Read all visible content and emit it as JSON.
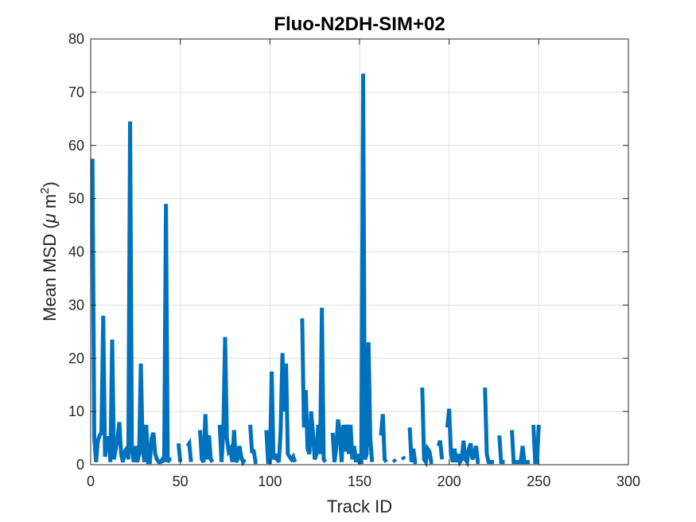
{
  "chart_data": {
    "type": "line",
    "title": "Fluo-N2DH-SIM+02",
    "xlabel": "Track ID",
    "ylabel_parts": [
      "Mean MSD (",
      "μ",
      " m",
      "2",
      ")"
    ],
    "xlim": [
      0,
      300
    ],
    "ylim": [
      0,
      80
    ],
    "xticks": [
      0,
      50,
      100,
      150,
      200,
      250,
      300
    ],
    "yticks": [
      0,
      10,
      20,
      30,
      40,
      50,
      60,
      70,
      80
    ],
    "grid": true,
    "line_color": "#0072BD",
    "axes_color": "#262626",
    "grid_color": "#dfdfdf",
    "series": [
      {
        "segments": [
          [
            [
              1,
              57.5
            ],
            [
              2,
              5
            ],
            [
              3,
              0.5
            ],
            [
              4,
              4.5
            ],
            [
              5,
              5.5
            ],
            [
              6,
              6
            ],
            [
              7,
              28
            ],
            [
              8,
              1.5
            ],
            [
              9,
              5
            ],
            [
              10,
              5
            ],
            [
              11,
              0.5
            ],
            [
              12,
              23.5
            ],
            [
              13,
              1
            ],
            [
              14,
              3
            ],
            [
              15,
              5
            ],
            [
              16,
              8
            ],
            [
              17,
              2
            ],
            [
              18,
              0.5
            ],
            [
              19,
              2.5
            ],
            [
              20,
              3
            ],
            [
              21,
              1
            ],
            [
              22,
              64.5
            ],
            [
              23,
              3
            ],
            [
              24,
              0.5
            ],
            [
              25,
              3.5
            ],
            [
              26,
              0.5
            ],
            [
              27,
              2
            ],
            [
              28,
              19
            ],
            [
              29,
              3
            ],
            [
              30,
              0.5
            ],
            [
              31,
              7.5
            ],
            [
              32,
              0.5
            ],
            [
              33,
              0.5
            ],
            [
              34,
              5
            ],
            [
              35,
              6
            ],
            [
              36,
              2
            ],
            [
              37,
              1
            ],
            [
              38,
              0.5
            ],
            [
              39,
              0.5
            ],
            [
              40,
              1
            ],
            [
              41,
              0.5
            ],
            [
              42,
              49
            ],
            [
              43,
              0.5
            ],
            [
              44,
              1
            ],
            [
              45,
              1
            ]
          ],
          [
            [
              49,
              4
            ],
            [
              50,
              0.5
            ]
          ],
          [
            [
              54,
              3.5
            ],
            [
              55,
              4
            ],
            [
              56,
              0.5
            ]
          ],
          [
            [
              61,
              6.5
            ],
            [
              62,
              1
            ],
            [
              63,
              0.5
            ],
            [
              64,
              9.5
            ],
            [
              65,
              1
            ],
            [
              66,
              5.5
            ],
            [
              67,
              1
            ],
            [
              68,
              0.5
            ]
          ],
          [
            [
              72,
              7.5
            ],
            [
              73,
              0.5
            ],
            [
              74,
              6
            ],
            [
              75,
              24
            ],
            [
              76,
              5
            ],
            [
              77,
              2.5
            ],
            [
              78,
              3
            ],
            [
              79,
              0.5
            ],
            [
              80,
              6.5
            ],
            [
              81,
              0.5
            ],
            [
              82,
              1
            ],
            [
              83,
              3.5
            ],
            [
              84,
              1.5
            ],
            [
              85,
              0.5
            ],
            [
              86,
              1
            ]
          ],
          [
            [
              89,
              7.5
            ],
            [
              90,
              2.5
            ],
            [
              91,
              2.5
            ],
            [
              92,
              0.5
            ],
            [
              93,
              0.5
            ]
          ],
          [
            [
              98,
              6.5
            ],
            [
              99,
              0.5
            ],
            [
              100,
              0.5
            ],
            [
              101,
              17.5
            ],
            [
              102,
              1
            ],
            [
              103,
              2
            ],
            [
              104,
              1
            ],
            [
              105,
              0.5
            ],
            [
              106,
              6.5
            ],
            [
              107,
              21
            ],
            [
              108,
              10
            ],
            [
              109,
              19
            ],
            [
              110,
              2
            ],
            [
              111,
              1.5
            ],
            [
              112,
              1
            ],
            [
              113,
              1.5
            ],
            [
              114,
              0.5
            ]
          ],
          [
            [
              118,
              27.5
            ],
            [
              119,
              7
            ],
            [
              120,
              14
            ],
            [
              121,
              3
            ],
            [
              122,
              2
            ],
            [
              123,
              10
            ],
            [
              124,
              6
            ],
            [
              125,
              1
            ],
            [
              126,
              2
            ],
            [
              127,
              7.5
            ],
            [
              128,
              2
            ],
            [
              129,
              29.5
            ],
            [
              130,
              1
            ],
            [
              131,
              0.5
            ]
          ],
          [
            [
              135,
              6
            ],
            [
              136,
              0.5
            ],
            [
              137,
              3
            ],
            [
              138,
              8.5
            ],
            [
              139,
              6
            ],
            [
              140,
              0.5
            ],
            [
              141,
              7.5
            ],
            [
              142,
              2.5
            ],
            [
              143,
              7.5
            ],
            [
              144,
              2
            ],
            [
              145,
              7.5
            ],
            [
              146,
              1
            ],
            [
              147,
              3.5
            ],
            [
              148,
              0.5
            ],
            [
              149,
              2
            ],
            [
              150,
              0.5
            ],
            [
              151,
              0.5
            ],
            [
              152,
              73.5
            ],
            [
              153,
              1
            ],
            [
              154,
              2
            ],
            [
              155,
              23
            ],
            [
              156,
              5
            ],
            [
              157,
              0.5
            ]
          ],
          [
            [
              162,
              5.5
            ],
            [
              163,
              9.5
            ],
            [
              164,
              1
            ],
            [
              165,
              0.5
            ]
          ],
          [
            [
              169,
              1
            ],
            [
              170,
              0.5
            ]
          ],
          [
            [
              174,
              1.5
            ],
            [
              175,
              1
            ]
          ],
          [
            [
              178,
              7
            ],
            [
              179,
              0.5
            ],
            [
              180,
              3
            ],
            [
              181,
              0.5
            ],
            [
              182,
              0.5
            ]
          ],
          [
            [
              185,
              14.5
            ],
            [
              186,
              1
            ],
            [
              187,
              0.5
            ],
            [
              188,
              3
            ],
            [
              189,
              2.5
            ],
            [
              190,
              0.5
            ],
            [
              191,
              0.5
            ]
          ],
          [
            [
              194,
              3.5
            ],
            [
              195,
              4.5
            ],
            [
              196,
              1
            ]
          ],
          [
            [
              199,
              7
            ],
            [
              200,
              10.5
            ],
            [
              201,
              2
            ],
            [
              202,
              0.5
            ],
            [
              203,
              3
            ],
            [
              204,
              0.5
            ],
            [
              205,
              2
            ],
            [
              206,
              0.5
            ],
            [
              207,
              1
            ],
            [
              208,
              4.5
            ],
            [
              209,
              1
            ],
            [
              210,
              0.5
            ],
            [
              211,
              3
            ],
            [
              212,
              4
            ],
            [
              213,
              1
            ],
            [
              214,
              2
            ],
            [
              215,
              3.5
            ],
            [
              216,
              0.5
            ],
            [
              217,
              0.5
            ]
          ],
          [
            [
              220,
              14.5
            ],
            [
              221,
              2
            ],
            [
              222,
              0.5
            ],
            [
              223,
              0.5
            ],
            [
              224,
              0.5
            ],
            [
              225,
              0.5
            ]
          ],
          [
            [
              228,
              5.5
            ],
            [
              229,
              0.5
            ],
            [
              230,
              0.5
            ],
            [
              231,
              0.5
            ]
          ],
          [
            [
              235,
              6.5
            ],
            [
              236,
              0.5
            ],
            [
              237,
              0.5
            ],
            [
              238,
              0.5
            ],
            [
              239,
              0.5
            ],
            [
              240,
              0.5
            ],
            [
              241,
              3.5
            ],
            [
              242,
              0.5
            ],
            [
              243,
              0.5
            ],
            [
              244,
              0.5
            ],
            [
              245,
              0.5
            ]
          ],
          [
            [
              247,
              7.5
            ],
            [
              248,
              0.5
            ],
            [
              249,
              0.5
            ],
            [
              250,
              7.5
            ]
          ]
        ]
      }
    ]
  }
}
